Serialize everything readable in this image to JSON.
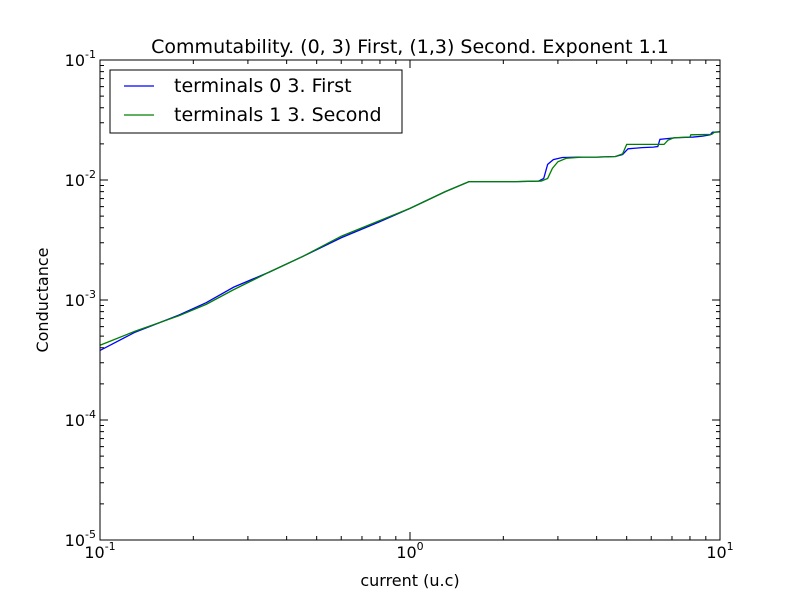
{
  "chart_data": {
    "type": "line",
    "title": "Commutability. (0, 3) First, (1,3) Second. Exponent 1.1",
    "xlabel": "current (u.c)",
    "ylabel": "Conductance",
    "xscale": "log",
    "yscale": "log",
    "xlim": [
      0.1,
      10
    ],
    "ylim": [
      1e-05,
      0.1
    ],
    "grid": false,
    "legend": {
      "placement": "top-left",
      "frame": true
    },
    "x_ticks": [
      {
        "base": "10",
        "exp": "-1",
        "value": 0.1
      },
      {
        "base": "10",
        "exp": "0",
        "value": 1
      },
      {
        "base": "10",
        "exp": "1",
        "value": 10
      }
    ],
    "y_ticks": [
      {
        "base": "10",
        "exp": "-5",
        "value": 1e-05
      },
      {
        "base": "10",
        "exp": "-4",
        "value": 0.0001
      },
      {
        "base": "10",
        "exp": "-3",
        "value": 0.001
      },
      {
        "base": "10",
        "exp": "-2",
        "value": 0.01
      },
      {
        "base": "10",
        "exp": "-1",
        "value": 0.1
      }
    ],
    "series": [
      {
        "name": "terminals 0 3. First",
        "color": "#0000ff",
        "points": [
          [
            0.1,
            0.00038
          ],
          [
            0.13,
            0.00054
          ],
          [
            0.18,
            0.00075
          ],
          [
            0.22,
            0.00095
          ],
          [
            0.27,
            0.00128
          ],
          [
            0.35,
            0.0017
          ],
          [
            0.45,
            0.0023
          ],
          [
            0.6,
            0.0033
          ],
          [
            0.8,
            0.0045
          ],
          [
            1.0,
            0.0058
          ],
          [
            1.3,
            0.008
          ],
          [
            1.55,
            0.0097
          ],
          [
            1.8,
            0.0097
          ],
          [
            2.2,
            0.0097
          ],
          [
            2.6,
            0.0098
          ],
          [
            2.7,
            0.0103
          ],
          [
            2.78,
            0.0135
          ],
          [
            2.9,
            0.0148
          ],
          [
            3.1,
            0.0154
          ],
          [
            3.5,
            0.0155
          ],
          [
            4.0,
            0.0155
          ],
          [
            4.6,
            0.0157
          ],
          [
            4.85,
            0.0163
          ],
          [
            5.05,
            0.0182
          ],
          [
            5.6,
            0.0186
          ],
          [
            6.1,
            0.0188
          ],
          [
            6.3,
            0.019
          ],
          [
            6.4,
            0.0218
          ],
          [
            7.2,
            0.0225
          ],
          [
            8.2,
            0.0228
          ],
          [
            8.8,
            0.0232
          ],
          [
            9.3,
            0.0238
          ],
          [
            9.45,
            0.025
          ],
          [
            10.0,
            0.0252
          ]
        ]
      },
      {
        "name": "terminals 1 3. Second",
        "color": "#008000",
        "points": [
          [
            0.1,
            0.00042
          ],
          [
            0.13,
            0.00055
          ],
          [
            0.18,
            0.00074
          ],
          [
            0.22,
            0.00092
          ],
          [
            0.27,
            0.00122
          ],
          [
            0.35,
            0.0017
          ],
          [
            0.45,
            0.0023
          ],
          [
            0.6,
            0.0034
          ],
          [
            0.8,
            0.0046
          ],
          [
            1.0,
            0.0058
          ],
          [
            1.3,
            0.008
          ],
          [
            1.55,
            0.0097
          ],
          [
            1.8,
            0.0097
          ],
          [
            2.2,
            0.0097
          ],
          [
            2.65,
            0.0098
          ],
          [
            2.78,
            0.0103
          ],
          [
            2.88,
            0.0125
          ],
          [
            3.0,
            0.0142
          ],
          [
            3.2,
            0.0152
          ],
          [
            3.6,
            0.0155
          ],
          [
            4.0,
            0.0155
          ],
          [
            4.6,
            0.0157
          ],
          [
            4.85,
            0.0165
          ],
          [
            5.0,
            0.0198
          ],
          [
            5.8,
            0.0198
          ],
          [
            6.6,
            0.0198
          ],
          [
            6.8,
            0.0215
          ],
          [
            7.1,
            0.0225
          ],
          [
            8.0,
            0.0228
          ],
          [
            8.05,
            0.0238
          ],
          [
            9.4,
            0.024
          ],
          [
            9.6,
            0.025
          ],
          [
            10.0,
            0.0252
          ]
        ]
      }
    ]
  }
}
